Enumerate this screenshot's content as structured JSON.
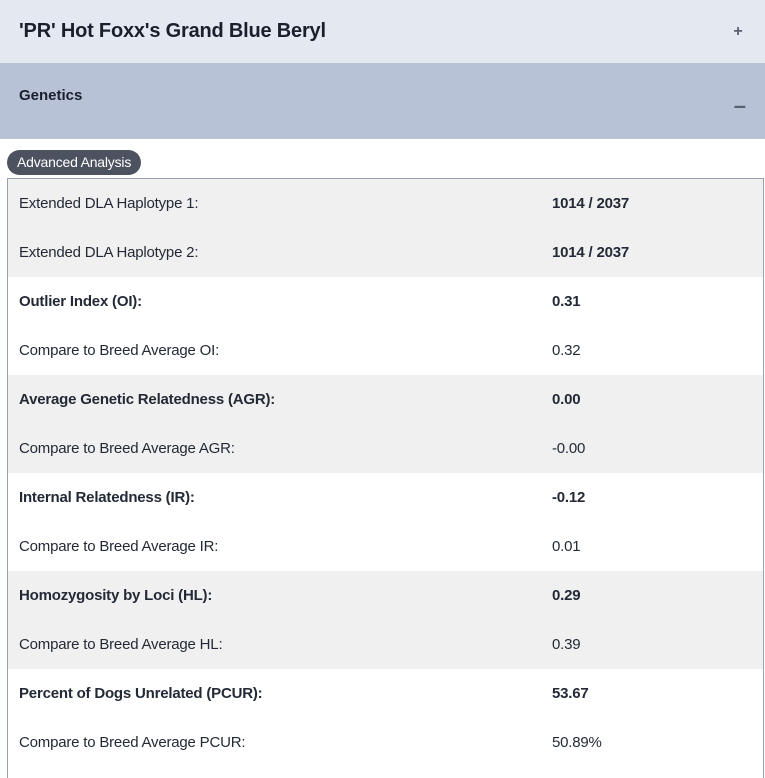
{
  "header": {
    "title": "'PR' Hot Foxx's Grand Blue Beryl",
    "toggle": "+"
  },
  "section": {
    "title": "Genetics",
    "toggle": "–"
  },
  "badge": "Advanced Analysis",
  "rows": [
    {
      "label": "Extended DLA Haplotype 1:",
      "value": "1014 / 2037",
      "label_bold": false,
      "value_bold": true,
      "shaded": true
    },
    {
      "label": "Extended DLA Haplotype 2:",
      "value": "1014 / 2037",
      "label_bold": false,
      "value_bold": true,
      "shaded": true
    },
    {
      "label": "Outlier Index (OI):",
      "value": "0.31",
      "label_bold": true,
      "value_bold": true,
      "shaded": false
    },
    {
      "label": "Compare to Breed Average OI:",
      "value": "0.32",
      "label_bold": false,
      "value_bold": false,
      "shaded": false
    },
    {
      "label": "Average Genetic Relatedness (AGR):",
      "value": "0.00",
      "label_bold": true,
      "value_bold": true,
      "shaded": true
    },
    {
      "label": "Compare to Breed Average AGR:",
      "value": "-0.00",
      "label_bold": false,
      "value_bold": false,
      "shaded": true
    },
    {
      "label": "Internal Relatedness (IR):",
      "value": "-0.12",
      "label_bold": true,
      "value_bold": true,
      "shaded": false
    },
    {
      "label": "Compare to Breed Average IR:",
      "value": "0.01",
      "label_bold": false,
      "value_bold": false,
      "shaded": false
    },
    {
      "label": "Homozygosity by Loci (HL):",
      "value": "0.29",
      "label_bold": true,
      "value_bold": true,
      "shaded": true
    },
    {
      "label": "Compare to Breed Average HL:",
      "value": "0.39",
      "label_bold": false,
      "value_bold": false,
      "shaded": true
    },
    {
      "label": "Percent of Dogs Unrelated (PCUR):",
      "value": "53.67",
      "label_bold": true,
      "value_bold": true,
      "shaded": false
    },
    {
      "label": "Compare to Breed Average PCUR:",
      "value": "50.89%",
      "label_bold": false,
      "value_bold": false,
      "shaded": false
    }
  ]
}
